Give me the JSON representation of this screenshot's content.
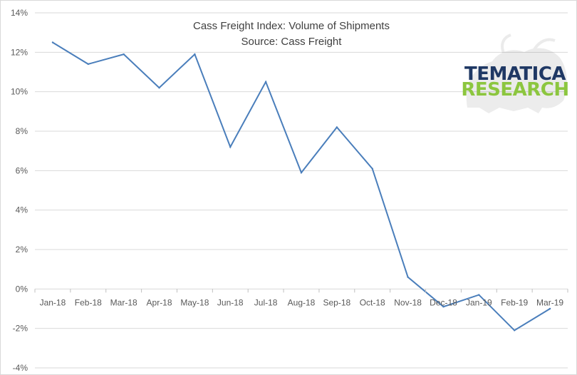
{
  "chart_data": {
    "type": "line",
    "title": "Cass Freight  Index: Volume  of Shipments",
    "subtitle": "Source:  Cass Freight",
    "categories": [
      "Jan-18",
      "Feb-18",
      "Mar-18",
      "Apr-18",
      "May-18",
      "Jun-18",
      "Jul-18",
      "Aug-18",
      "Sep-18",
      "Oct-18",
      "Nov-18",
      "Dec-18",
      "Jan-19",
      "Feb-19",
      "Mar-19"
    ],
    "series": [
      {
        "values": [
          12.5,
          11.4,
          11.9,
          10.2,
          11.9,
          7.2,
          10.5,
          5.9,
          8.2,
          6.1,
          0.6,
          -0.9,
          -0.3,
          -2.1,
          -1.0
        ]
      }
    ],
    "ylim": [
      -4,
      14
    ],
    "yticks": [
      -4,
      -2,
      0,
      2,
      4,
      6,
      8,
      10,
      12,
      14
    ],
    "ytick_labels": [
      "-4%",
      "-2%",
      "0%",
      "2%",
      "4%",
      "6%",
      "8%",
      "10%",
      "12%",
      "14%"
    ],
    "grid": true,
    "line_color": "#4a7ebb"
  },
  "logo": {
    "line1": "TEMATICA",
    "line2": "RESEARCH"
  }
}
